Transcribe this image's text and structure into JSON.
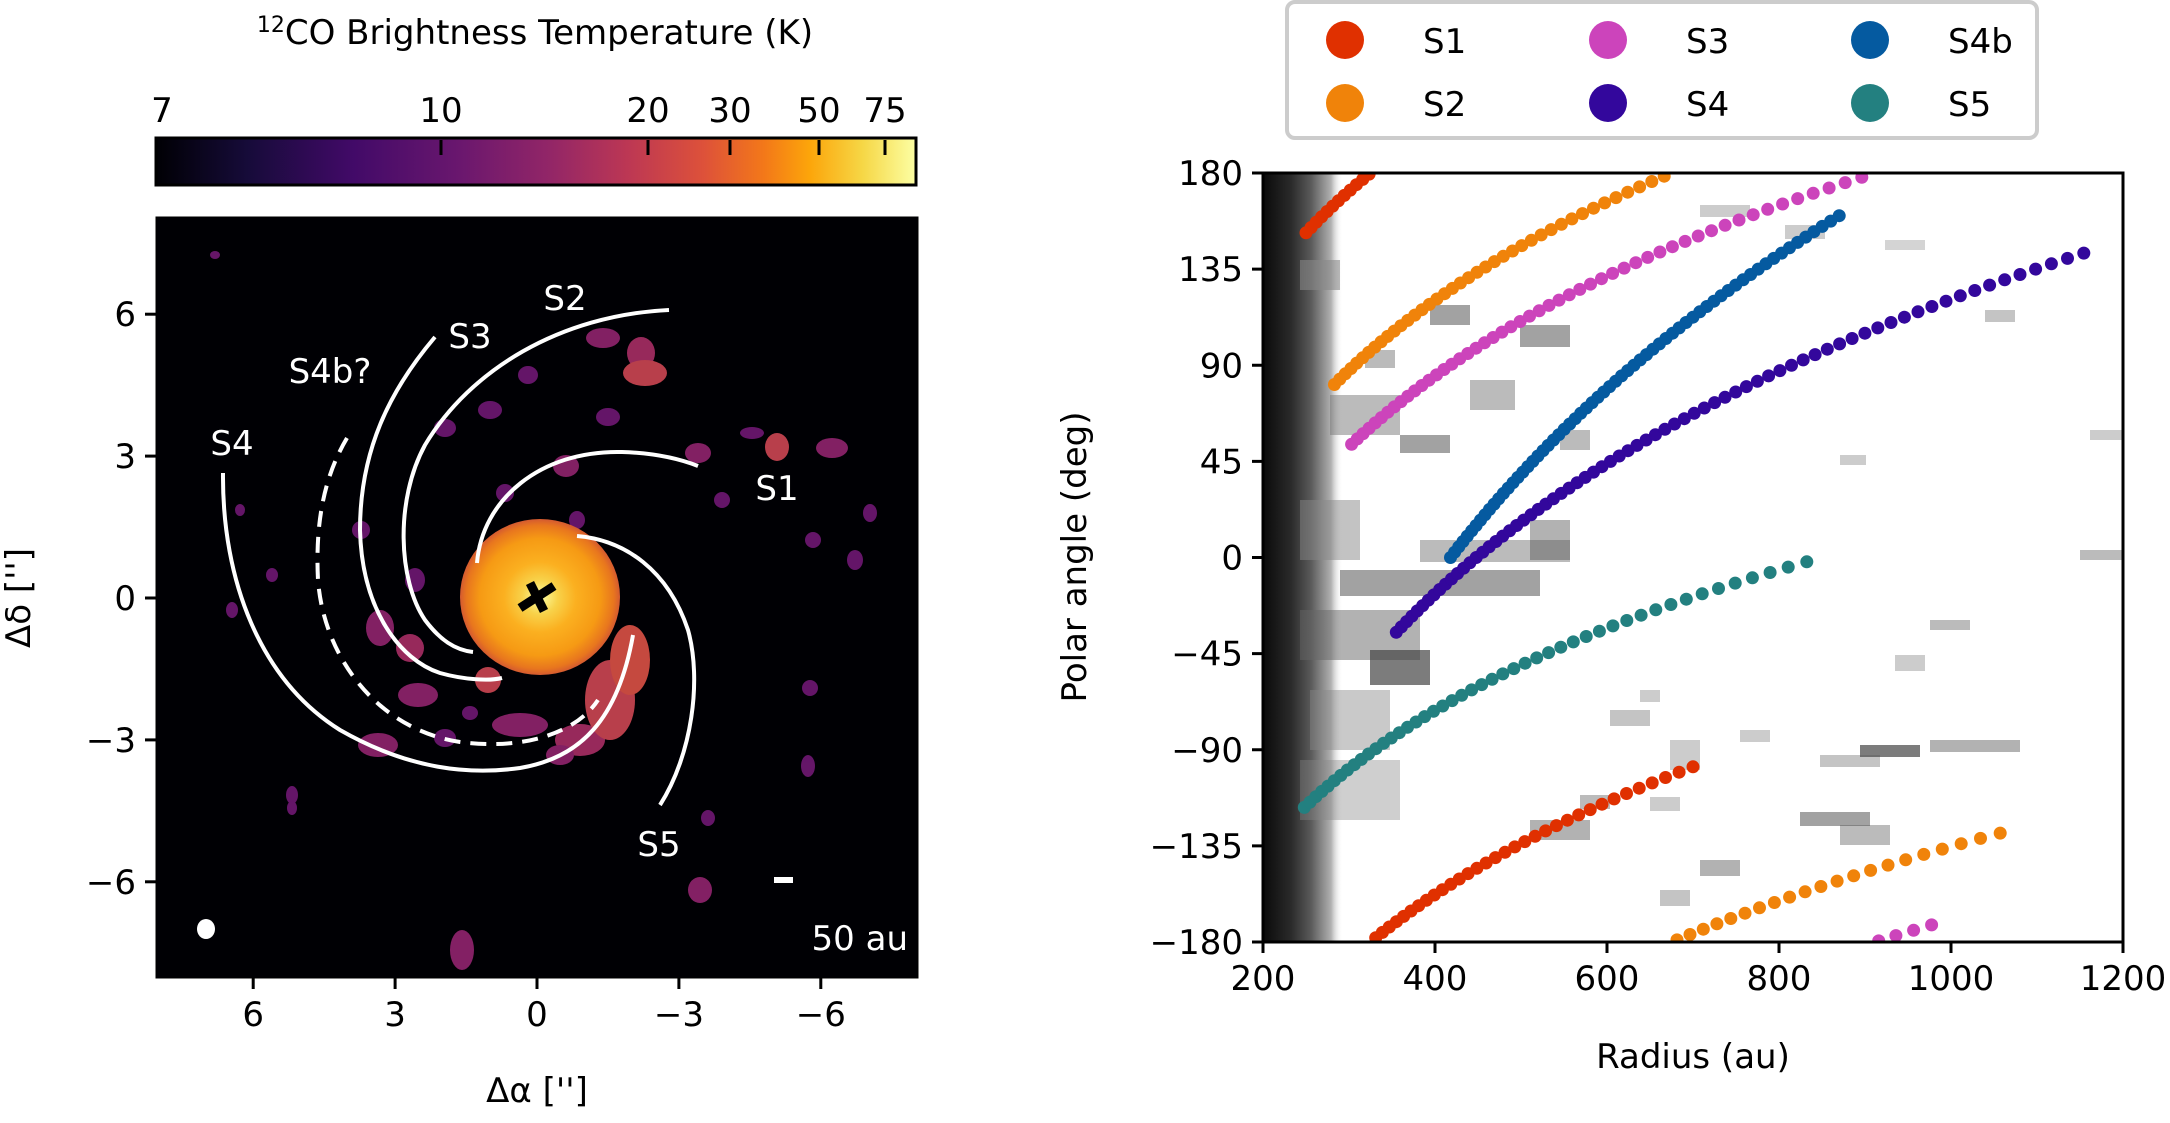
{
  "figure": {
    "left_panel": {
      "colorbar": {
        "title_sup": "12",
        "title": "CO Brightness Temperature (K)",
        "ticks": [
          "7",
          "10",
          "20",
          "30",
          "50",
          "75"
        ],
        "cmap": "inferno",
        "range_K": [
          7,
          90
        ]
      },
      "xlabel": "Δα ['']",
      "ylabel": "Δδ ['']",
      "xticks": [
        "6",
        "3",
        "0",
        "−3",
        "−6"
      ],
      "yticks": [
        "6",
        "3",
        "0",
        "−3",
        "−6"
      ],
      "xlim": [
        8.05,
        -8.05
      ],
      "ylim": [
        -8.05,
        8.05
      ],
      "spiral_labels": {
        "s1": "S1",
        "s2": "S2",
        "s3": "S3",
        "s4": "S4",
        "s4b": "S4b?",
        "s5": "S5"
      },
      "scale_bar_label": "50 au",
      "beam_marker": "beam",
      "center_marker": "cross"
    }
  },
  "chart_data": {
    "type": "scatter",
    "title": "",
    "xlabel": "Radius (au)",
    "ylabel": "Polar angle (deg)",
    "xlim": [
      200,
      1200
    ],
    "ylim": [
      -180,
      180
    ],
    "xticks": [
      "200",
      "400",
      "600",
      "800",
      "1000",
      "1200"
    ],
    "yticks": [
      "180",
      "135",
      "90",
      "45",
      "0",
      "−45",
      "−90",
      "−135",
      "−180"
    ],
    "xtick_values": [
      200,
      400,
      600,
      800,
      1000,
      1200
    ],
    "ytick_values": [
      180,
      135,
      90,
      45,
      0,
      -45,
      -90,
      -135,
      -180
    ],
    "background": "grayscale deprojected intensity map (polar angle vs radius)",
    "legend": {
      "placement": "top",
      "columns": 3
    },
    "angle_step_deg": 2.5,
    "series": [
      {
        "name": "S1",
        "color": "#e03000",
        "r_start": 250,
        "theta_start": 152,
        "r_end": 700,
        "theta_end": 262
      },
      {
        "name": "S2",
        "color": "#f0830a",
        "r_start": 283,
        "theta_start": 81,
        "r_end": 1076,
        "theta_end": 233
      },
      {
        "name": "S3",
        "color": "#cc44bb",
        "r_start": 303,
        "theta_start": 53,
        "r_end": 986,
        "theta_end": 189
      },
      {
        "name": "S4",
        "color": "#33079c",
        "r_start": 355,
        "theta_start": -35,
        "r_end": 1166,
        "theta_end": 144
      },
      {
        "name": "S4b",
        "color": "#055aa0",
        "r_start": 418,
        "theta_start": 0,
        "r_end": 878,
        "theta_end": 162
      },
      {
        "name": "S5",
        "color": "#238080",
        "r_start": 248,
        "theta_start": -117,
        "r_end": 850,
        "theta_end": 0
      }
    ],
    "legend_order": [
      "S1",
      "S2",
      "S3",
      "S4",
      "S4b",
      "S5"
    ]
  }
}
